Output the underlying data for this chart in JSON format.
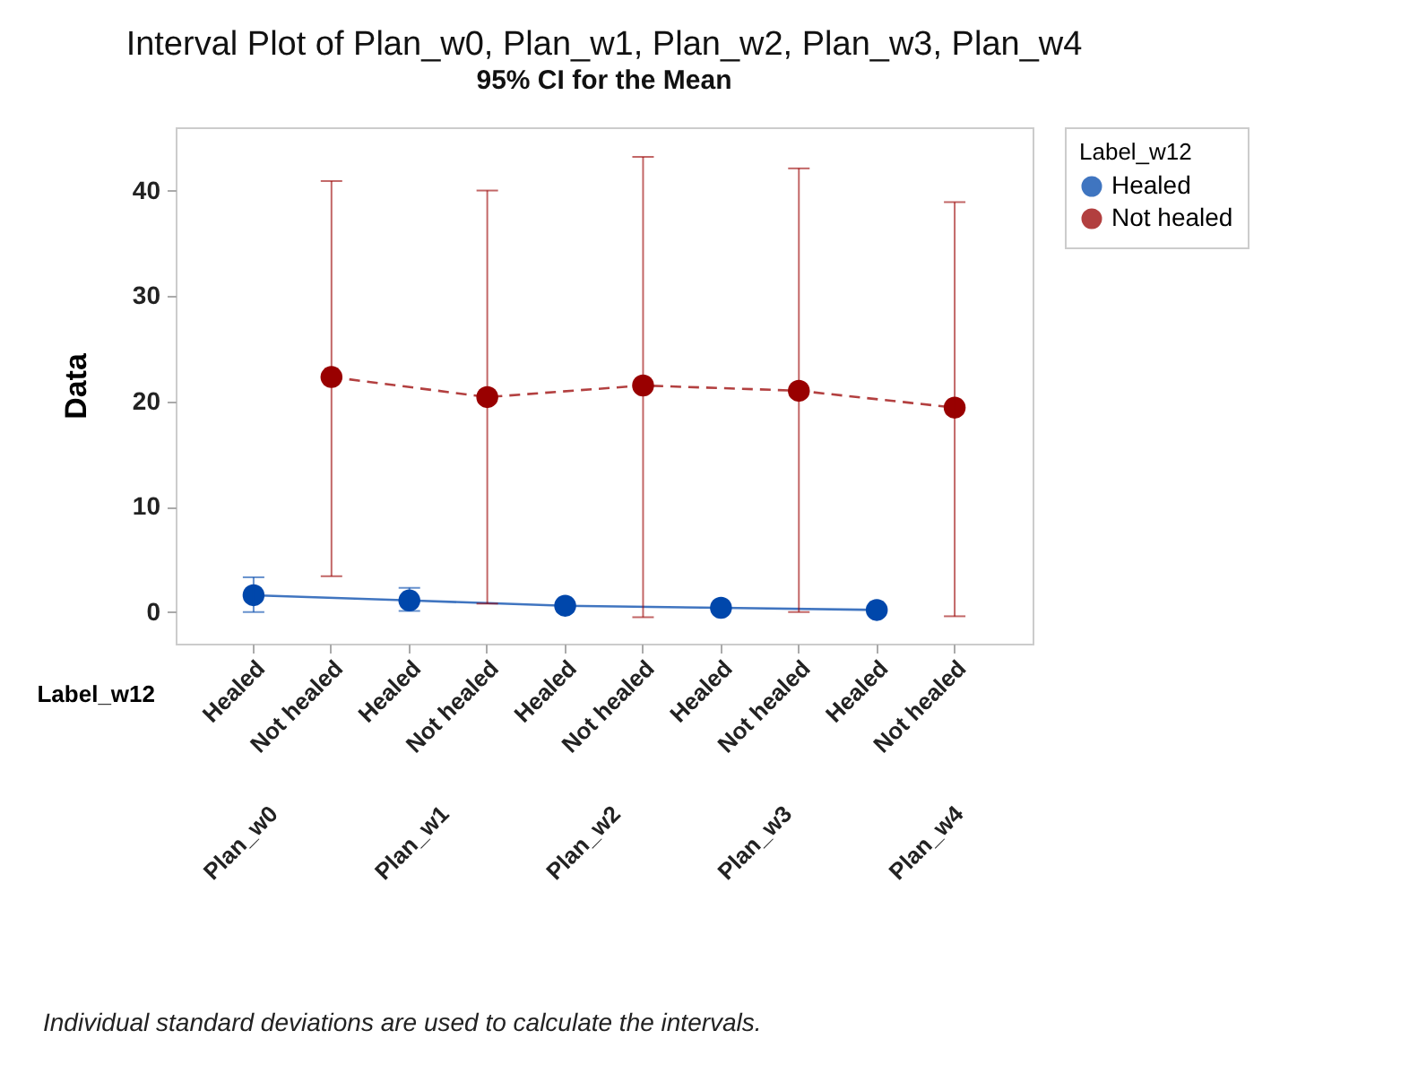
{
  "chart_data": {
    "type": "line",
    "title": "Interval Plot of Plan_w0, Plan_w1, Plan_w2, Plan_w3, Plan_w4",
    "subtitle": "95% CI for the Mean",
    "ylabel": "Data",
    "xlabel": "Label_w12",
    "legend_title": "Label_w12",
    "categories": [
      "Healed",
      "Not healed",
      "Healed",
      "Not healed",
      "Healed",
      "Not healed",
      "Healed",
      "Not healed",
      "Healed",
      "Not healed"
    ],
    "series": [
      {
        "name": "Healed",
        "color": "#0047ab",
        "line_style": "solid",
        "values": [
          1.6,
          null,
          1.1,
          null,
          0.6,
          null,
          0.4,
          null,
          0.2,
          null
        ],
        "errors": [
          [
            0,
            3.3
          ],
          null,
          [
            0.1,
            2.3
          ],
          null,
          null,
          null,
          null,
          null,
          null,
          null
        ]
      },
      {
        "name": "Not healed",
        "color": "#990000",
        "line_style": "dashed",
        "values": [
          null,
          22.3,
          null,
          20.4,
          null,
          21.5,
          null,
          21.0,
          null,
          19.4
        ],
        "errors": [
          null,
          [
            3.4,
            40.9
          ],
          null,
          [
            0.8,
            40.0
          ],
          null,
          [
            -0.5,
            43.2
          ],
          null,
          [
            0,
            42.1
          ],
          null,
          [
            -0.4,
            38.9
          ]
        ]
      }
    ],
    "ylim": [
      -3,
      46
    ],
    "yticks": [
      0,
      10,
      20,
      30,
      40
    ],
    "grid": false,
    "legend": "top right",
    "marker": "circle",
    "annotations": [
      "Plan_w0",
      "Plan_w1",
      "Plan_w2",
      "Plan_w3",
      "Plan_w4",
      "Individual standard deviations are used to calculate the intervals."
    ]
  }
}
